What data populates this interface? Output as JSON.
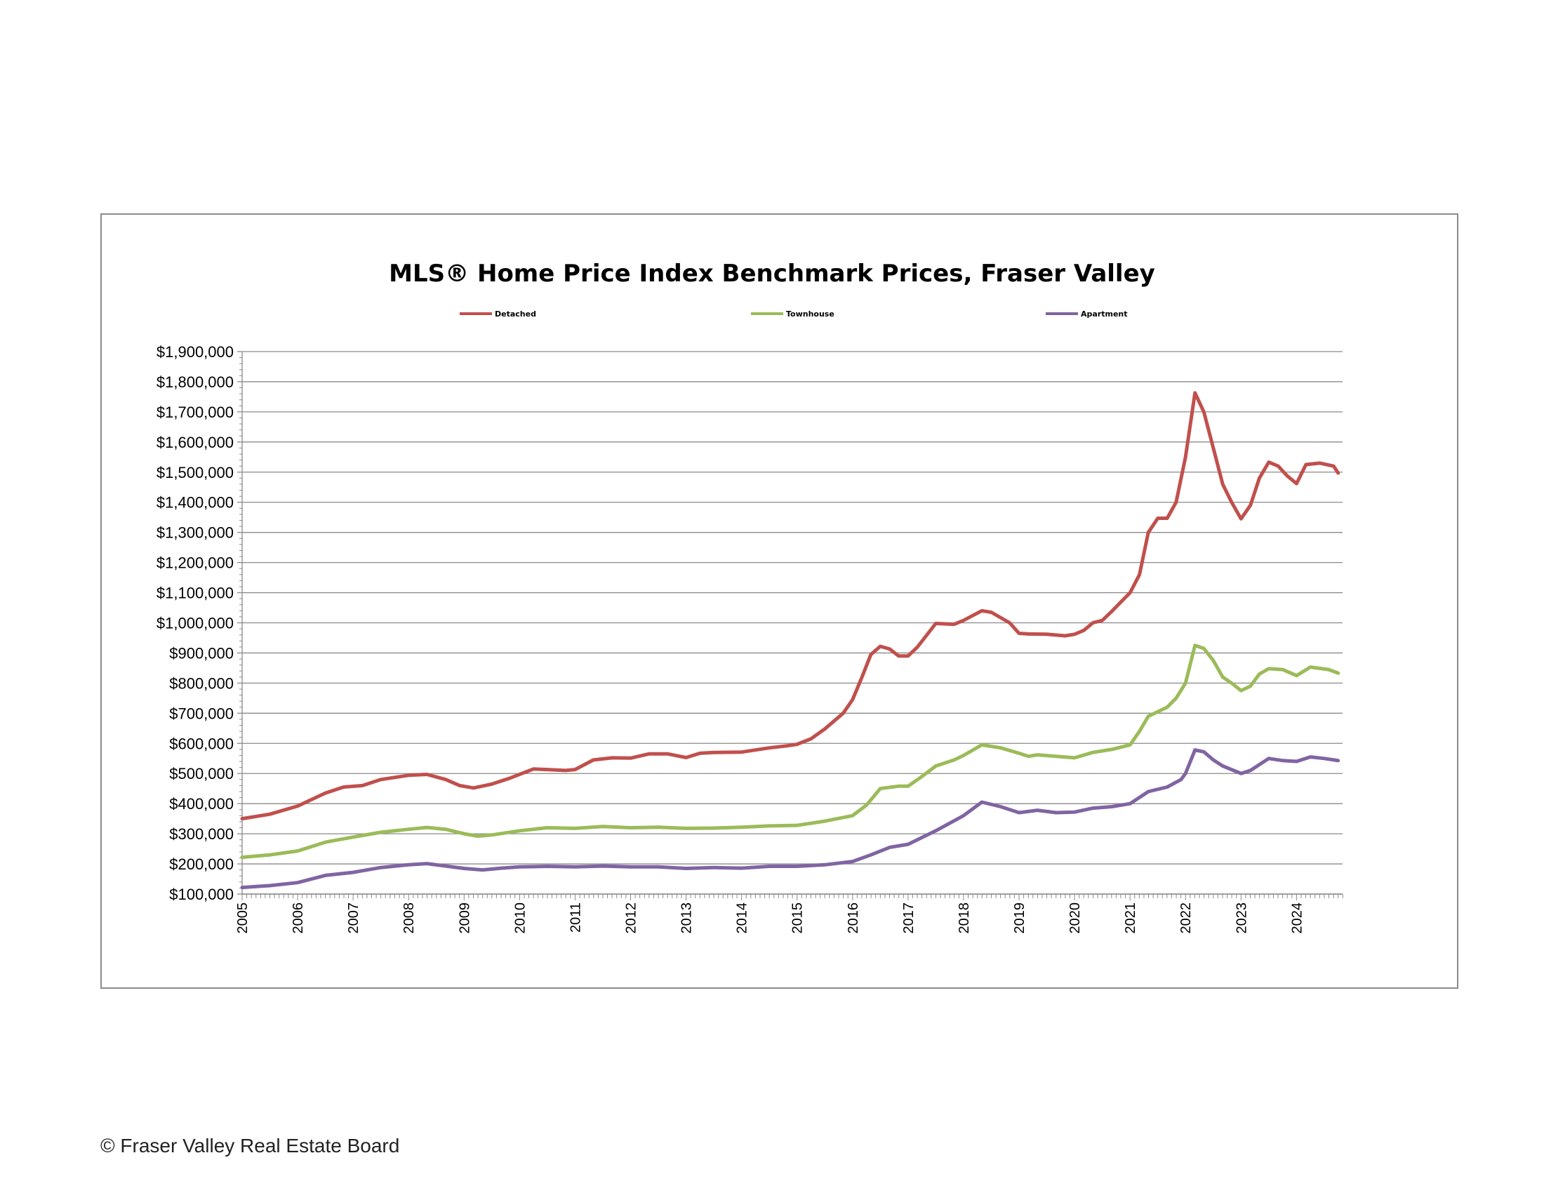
{
  "chart_data": {
    "type": "line",
    "title": "MLS® Home Price Index Benchmark Prices, Fraser Valley",
    "xlabel": "",
    "ylabel": "",
    "xlim": [
      2005,
      2024.83
    ],
    "ylim": [
      100000,
      1900000
    ],
    "y_ticks": [
      100000,
      200000,
      300000,
      400000,
      500000,
      600000,
      700000,
      800000,
      900000,
      1000000,
      1100000,
      1200000,
      1300000,
      1400000,
      1500000,
      1600000,
      1700000,
      1800000,
      1900000
    ],
    "y_tick_labels": [
      "$100,000",
      "$200,000",
      "$300,000",
      "$400,000",
      "$500,000",
      "$600,000",
      "$700,000",
      "$800,000",
      "$900,000",
      "$1,000,000",
      "$1,100,000",
      "$1,200,000",
      "$1,300,000",
      "$1,400,000",
      "$1,500,000",
      "$1,600,000",
      "$1,700,000",
      "$1,800,000",
      "$1,900,000"
    ],
    "x_tick_labels": [
      "2005",
      "2006",
      "2007",
      "2008",
      "2009",
      "2010",
      "2011",
      "2012",
      "2013",
      "2014",
      "2015",
      "2016",
      "2017",
      "2018",
      "2019",
      "2020",
      "2021",
      "2022",
      "2023",
      "2024"
    ],
    "grid": true,
    "legend_position": "top",
    "series": [
      {
        "name": "Detached",
        "color": "#c0504d",
        "points": [
          [
            2005.0,
            350000
          ],
          [
            2005.5,
            365000
          ],
          [
            2006.0,
            392000
          ],
          [
            2006.5,
            435000
          ],
          [
            2006.83,
            455000
          ],
          [
            2007.17,
            460000
          ],
          [
            2007.5,
            480000
          ],
          [
            2008.0,
            494000
          ],
          [
            2008.33,
            497000
          ],
          [
            2008.67,
            480000
          ],
          [
            2008.92,
            460000
          ],
          [
            2009.17,
            452000
          ],
          [
            2009.5,
            465000
          ],
          [
            2009.83,
            485000
          ],
          [
            2010.25,
            515000
          ],
          [
            2010.5,
            513000
          ],
          [
            2010.83,
            510000
          ],
          [
            2011.0,
            513000
          ],
          [
            2011.33,
            545000
          ],
          [
            2011.67,
            552000
          ],
          [
            2012.0,
            551000
          ],
          [
            2012.33,
            565000
          ],
          [
            2012.67,
            565000
          ],
          [
            2013.0,
            553000
          ],
          [
            2013.25,
            567000
          ],
          [
            2013.5,
            570000
          ],
          [
            2014.0,
            571000
          ],
          [
            2014.5,
            585000
          ],
          [
            2014.83,
            592000
          ],
          [
            2015.0,
            597000
          ],
          [
            2015.25,
            615000
          ],
          [
            2015.5,
            648000
          ],
          [
            2015.83,
            700000
          ],
          [
            2016.0,
            745000
          ],
          [
            2016.17,
            820000
          ],
          [
            2016.33,
            895000
          ],
          [
            2016.5,
            922000
          ],
          [
            2016.67,
            913000
          ],
          [
            2016.83,
            890000
          ],
          [
            2017.0,
            890000
          ],
          [
            2017.17,
            920000
          ],
          [
            2017.5,
            998000
          ],
          [
            2017.83,
            995000
          ],
          [
            2018.0,
            1008000
          ],
          [
            2018.33,
            1040000
          ],
          [
            2018.5,
            1035000
          ],
          [
            2018.83,
            1000000
          ],
          [
            2019.0,
            965000
          ],
          [
            2019.17,
            963000
          ],
          [
            2019.5,
            962000
          ],
          [
            2019.83,
            957000
          ],
          [
            2020.0,
            962000
          ],
          [
            2020.17,
            975000
          ],
          [
            2020.33,
            1000000
          ],
          [
            2020.5,
            1008000
          ],
          [
            2020.67,
            1038000
          ],
          [
            2020.83,
            1068000
          ],
          [
            2021.0,
            1100000
          ],
          [
            2021.17,
            1160000
          ],
          [
            2021.33,
            1300000
          ],
          [
            2021.5,
            1347000
          ],
          [
            2021.67,
            1347000
          ],
          [
            2021.83,
            1400000
          ],
          [
            2022.0,
            1550000
          ],
          [
            2022.17,
            1763000
          ],
          [
            2022.33,
            1700000
          ],
          [
            2022.5,
            1580000
          ],
          [
            2022.67,
            1460000
          ],
          [
            2022.83,
            1400000
          ],
          [
            2023.0,
            1345000
          ],
          [
            2023.17,
            1390000
          ],
          [
            2023.33,
            1480000
          ],
          [
            2023.5,
            1533000
          ],
          [
            2023.67,
            1520000
          ],
          [
            2023.83,
            1488000
          ],
          [
            2024.0,
            1462000
          ],
          [
            2024.17,
            1525000
          ],
          [
            2024.42,
            1530000
          ],
          [
            2024.67,
            1520000
          ],
          [
            2024.75,
            1497000
          ]
        ]
      },
      {
        "name": "Townhouse",
        "color": "#9bbb59",
        "points": [
          [
            2005.0,
            222000
          ],
          [
            2005.5,
            230000
          ],
          [
            2006.0,
            243000
          ],
          [
            2006.5,
            272000
          ],
          [
            2007.0,
            289000
          ],
          [
            2007.5,
            305000
          ],
          [
            2008.0,
            315000
          ],
          [
            2008.33,
            321000
          ],
          [
            2008.67,
            315000
          ],
          [
            2009.0,
            300000
          ],
          [
            2009.25,
            292000
          ],
          [
            2009.5,
            296000
          ],
          [
            2010.0,
            310000
          ],
          [
            2010.5,
            320000
          ],
          [
            2011.0,
            318000
          ],
          [
            2011.5,
            324000
          ],
          [
            2012.0,
            320000
          ],
          [
            2012.5,
            322000
          ],
          [
            2013.0,
            318000
          ],
          [
            2013.5,
            319000
          ],
          [
            2014.0,
            322000
          ],
          [
            2014.5,
            326000
          ],
          [
            2015.0,
            328000
          ],
          [
            2015.5,
            342000
          ],
          [
            2016.0,
            360000
          ],
          [
            2016.25,
            395000
          ],
          [
            2016.5,
            450000
          ],
          [
            2016.83,
            458000
          ],
          [
            2017.0,
            458000
          ],
          [
            2017.25,
            490000
          ],
          [
            2017.5,
            525000
          ],
          [
            2017.83,
            545000
          ],
          [
            2018.0,
            560000
          ],
          [
            2018.33,
            595000
          ],
          [
            2018.67,
            585000
          ],
          [
            2019.0,
            567000
          ],
          [
            2019.17,
            557000
          ],
          [
            2019.33,
            562000
          ],
          [
            2019.67,
            557000
          ],
          [
            2020.0,
            552000
          ],
          [
            2020.33,
            570000
          ],
          [
            2020.67,
            580000
          ],
          [
            2021.0,
            595000
          ],
          [
            2021.17,
            640000
          ],
          [
            2021.33,
            690000
          ],
          [
            2021.67,
            720000
          ],
          [
            2021.83,
            750000
          ],
          [
            2022.0,
            800000
          ],
          [
            2022.17,
            925000
          ],
          [
            2022.33,
            915000
          ],
          [
            2022.5,
            875000
          ],
          [
            2022.67,
            820000
          ],
          [
            2022.83,
            800000
          ],
          [
            2023.0,
            775000
          ],
          [
            2023.17,
            790000
          ],
          [
            2023.33,
            830000
          ],
          [
            2023.5,
            848000
          ],
          [
            2023.75,
            845000
          ],
          [
            2024.0,
            825000
          ],
          [
            2024.25,
            853000
          ],
          [
            2024.58,
            845000
          ],
          [
            2024.75,
            833000
          ]
        ]
      },
      {
        "name": "Apartment",
        "color": "#8064a2",
        "points": [
          [
            2005.0,
            122000
          ],
          [
            2005.5,
            128000
          ],
          [
            2006.0,
            138000
          ],
          [
            2006.5,
            162000
          ],
          [
            2007.0,
            172000
          ],
          [
            2007.5,
            188000
          ],
          [
            2008.0,
            197000
          ],
          [
            2008.33,
            201000
          ],
          [
            2008.67,
            193000
          ],
          [
            2009.0,
            185000
          ],
          [
            2009.33,
            180000
          ],
          [
            2009.67,
            186000
          ],
          [
            2010.0,
            190000
          ],
          [
            2010.5,
            192000
          ],
          [
            2011.0,
            190000
          ],
          [
            2011.5,
            193000
          ],
          [
            2012.0,
            190000
          ],
          [
            2012.5,
            190000
          ],
          [
            2013.0,
            185000
          ],
          [
            2013.5,
            188000
          ],
          [
            2014.0,
            186000
          ],
          [
            2014.5,
            192000
          ],
          [
            2015.0,
            192000
          ],
          [
            2015.5,
            197000
          ],
          [
            2016.0,
            208000
          ],
          [
            2016.33,
            230000
          ],
          [
            2016.67,
            255000
          ],
          [
            2017.0,
            265000
          ],
          [
            2017.5,
            310000
          ],
          [
            2018.0,
            360000
          ],
          [
            2018.33,
            405000
          ],
          [
            2018.67,
            390000
          ],
          [
            2019.0,
            370000
          ],
          [
            2019.33,
            378000
          ],
          [
            2019.67,
            370000
          ],
          [
            2020.0,
            372000
          ],
          [
            2020.33,
            385000
          ],
          [
            2020.67,
            390000
          ],
          [
            2021.0,
            400000
          ],
          [
            2021.33,
            440000
          ],
          [
            2021.67,
            455000
          ],
          [
            2021.92,
            480000
          ],
          [
            2022.0,
            500000
          ],
          [
            2022.17,
            578000
          ],
          [
            2022.33,
            572000
          ],
          [
            2022.5,
            545000
          ],
          [
            2022.67,
            525000
          ],
          [
            2023.0,
            500000
          ],
          [
            2023.17,
            510000
          ],
          [
            2023.5,
            550000
          ],
          [
            2023.75,
            543000
          ],
          [
            2024.0,
            540000
          ],
          [
            2024.25,
            555000
          ],
          [
            2024.5,
            550000
          ],
          [
            2024.75,
            543000
          ]
        ]
      }
    ]
  },
  "footer": {
    "copyright": "© Fraser Valley Real Estate Board"
  }
}
